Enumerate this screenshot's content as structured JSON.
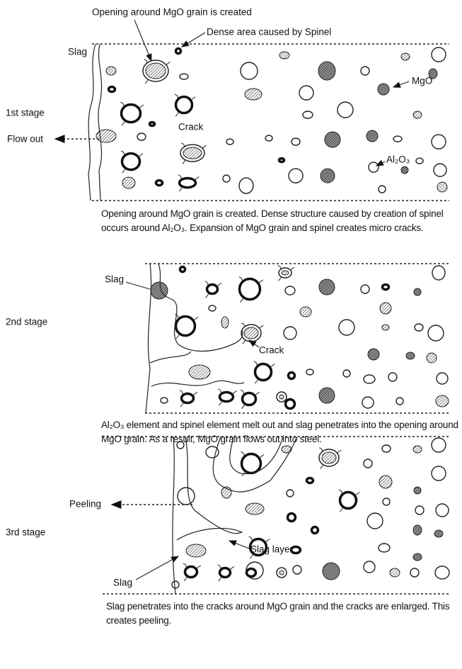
{
  "stages": [
    {
      "name": "1st stage",
      "labels": [
        "Opening around MgO grain is created",
        "Dense area caused by Spinel",
        "Slag",
        "MgO",
        "Flow out",
        "Crack",
        "Al₂O₃"
      ],
      "caption": "Opening around MgO grain is created. Dense structure caused by creation of spinel occurs around Al₂O₃. Expansion of MgO grain and spinel creates micro cracks."
    },
    {
      "name": "2nd stage",
      "labels": [
        "Slag",
        "Crack"
      ],
      "caption": "Al₂O₃ element and spinel element melt out and slag penetrates into the opening around MgO grain. As a result, MgO grain flows out into steel."
    },
    {
      "name": "3rd stage",
      "labels": [
        "Peeling",
        "Slag layer",
        "Slag"
      ],
      "caption": "Slag penetrates into the cracks around MgO grain and the cracks are enlarged. This creates peeling."
    }
  ]
}
